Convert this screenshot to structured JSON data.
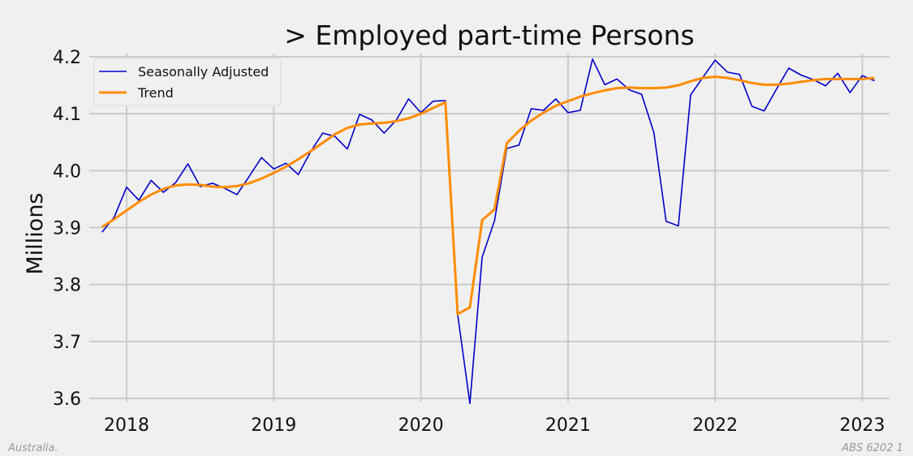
{
  "chart_data": {
    "type": "line",
    "title": "> Employed part-time Persons",
    "xlabel": "",
    "ylabel": "Millions",
    "ylim": [
      3.6,
      4.2
    ],
    "yticks": [
      "3.6",
      "3.7",
      "3.8",
      "3.9",
      "4.0",
      "4.1",
      "4.2"
    ],
    "xticks": [
      "2018",
      "2019",
      "2020",
      "2021",
      "2022",
      "2023"
    ],
    "grid": true,
    "legend_placement": "top-left",
    "x": [
      "2017-11",
      "2017-12",
      "2018-01",
      "2018-02",
      "2018-03",
      "2018-04",
      "2018-05",
      "2018-06",
      "2018-07",
      "2018-08",
      "2018-09",
      "2018-10",
      "2018-11",
      "2018-12",
      "2019-01",
      "2019-02",
      "2019-03",
      "2019-04",
      "2019-05",
      "2019-06",
      "2019-07",
      "2019-08",
      "2019-09",
      "2019-10",
      "2019-11",
      "2019-12",
      "2020-01",
      "2020-02",
      "2020-03",
      "2020-04",
      "2020-05",
      "2020-06",
      "2020-07",
      "2020-08",
      "2020-09",
      "2020-10",
      "2020-11",
      "2020-12",
      "2021-01",
      "2021-02",
      "2021-03",
      "2021-04",
      "2021-05",
      "2021-06",
      "2021-07",
      "2021-08",
      "2021-09",
      "2021-10",
      "2021-11",
      "2021-12",
      "2022-01",
      "2022-02",
      "2022-03",
      "2022-04",
      "2022-05",
      "2022-06",
      "2022-07",
      "2022-08",
      "2022-09",
      "2022-10",
      "2022-11",
      "2022-12",
      "2023-01",
      "2023-02"
    ],
    "series": [
      {
        "name": "Seasonally Adjusted",
        "color": "#0000cc",
        "values": [
          3.892,
          3.919,
          3.971,
          3.948,
          3.983,
          3.962,
          3.979,
          4.012,
          3.972,
          3.978,
          3.969,
          3.958,
          3.99,
          4.023,
          4.003,
          4.013,
          3.993,
          4.033,
          4.066,
          4.06,
          4.038,
          4.099,
          4.089,
          4.066,
          4.089,
          4.126,
          4.102,
          4.122,
          4.123,
          3.748,
          3.591,
          3.848,
          3.912,
          4.039,
          4.045,
          4.109,
          4.106,
          4.126,
          4.102,
          4.106,
          4.196,
          4.151,
          4.161,
          4.142,
          4.134,
          4.067,
          3.911,
          3.903,
          4.133,
          4.164,
          4.194,
          4.173,
          4.169,
          4.113,
          4.105,
          4.143,
          4.18,
          4.168,
          4.16,
          4.149,
          4.171,
          4.137,
          4.167,
          4.158
        ]
      },
      {
        "name": "Trend",
        "color": "#ff8c00",
        "values": [
          3.901,
          3.915,
          3.93,
          3.945,
          3.958,
          3.968,
          3.974,
          3.976,
          3.975,
          3.972,
          3.971,
          3.973,
          3.978,
          3.986,
          3.996,
          4.007,
          4.02,
          4.034,
          4.049,
          4.064,
          4.075,
          4.081,
          4.083,
          4.084,
          4.087,
          4.092,
          4.1,
          4.11,
          4.12,
          3.748,
          3.76,
          3.913,
          3.932,
          4.048,
          4.07,
          4.088,
          4.102,
          4.114,
          4.122,
          4.13,
          4.136,
          4.141,
          4.145,
          4.146,
          4.145,
          4.145,
          4.146,
          4.15,
          4.157,
          4.163,
          4.165,
          4.163,
          4.159,
          4.154,
          4.151,
          4.151,
          4.153,
          4.156,
          4.159,
          4.161,
          4.161,
          4.161,
          4.161,
          4.163
        ]
      }
    ]
  },
  "footer": {
    "left": "Australia.",
    "right": "ABS 6202 1"
  }
}
